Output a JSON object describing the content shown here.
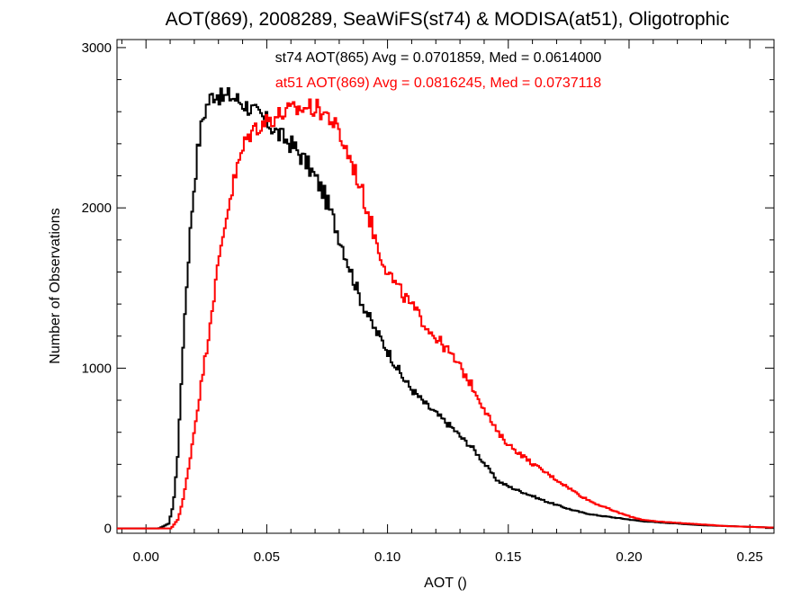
{
  "chart_data": {
    "type": "line",
    "title": "AOT(869), 2008289, SeaWiFS(st74) & MODISA(at51), Oligotrophic",
    "xlabel": "AOT ()",
    "ylabel": "Number of Observations",
    "xlim": [
      -0.012,
      0.26
    ],
    "ylim": [
      -30,
      3050
    ],
    "x_ticks": [
      0.0,
      0.05,
      0.1,
      0.15,
      0.2,
      0.25
    ],
    "x_tick_labels": [
      "0.00",
      "0.05",
      "0.10",
      "0.15",
      "0.20",
      "0.25"
    ],
    "y_ticks": [
      0,
      1000,
      2000,
      3000
    ],
    "y_tick_labels": [
      "0",
      "1000",
      "2000",
      "3000"
    ],
    "grid": false,
    "legend_position": "top-center",
    "series": [
      {
        "name": "st74 AOT(865) Avg = 0.0701859, Med = 0.0614000",
        "color": "#000000",
        "x": [
          -0.012,
          0.005,
          0.009,
          0.011,
          0.013,
          0.015,
          0.017,
          0.019,
          0.021,
          0.023,
          0.025,
          0.027,
          0.029,
          0.031,
          0.034,
          0.037,
          0.04,
          0.043,
          0.046,
          0.049,
          0.052,
          0.055,
          0.058,
          0.061,
          0.064,
          0.067,
          0.07,
          0.073,
          0.076,
          0.079,
          0.082,
          0.085,
          0.088,
          0.091,
          0.094,
          0.097,
          0.1,
          0.103,
          0.106,
          0.109,
          0.112,
          0.115,
          0.118,
          0.121,
          0.124,
          0.127,
          0.13,
          0.135,
          0.14,
          0.145,
          0.15,
          0.155,
          0.16,
          0.165,
          0.17,
          0.175,
          0.18,
          0.185,
          0.19,
          0.195,
          0.2,
          0.205,
          0.21,
          0.22,
          0.23,
          0.24,
          0.25,
          0.26
        ],
        "y": [
          0,
          0,
          30,
          150,
          500,
          1150,
          1650,
          2050,
          2350,
          2550,
          2650,
          2700,
          2720,
          2680,
          2700,
          2680,
          2650,
          2620,
          2580,
          2550,
          2500,
          2450,
          2420,
          2380,
          2320,
          2260,
          2180,
          2100,
          1980,
          1850,
          1720,
          1580,
          1450,
          1350,
          1250,
          1180,
          1100,
          1020,
          940,
          880,
          830,
          780,
          740,
          700,
          660,
          620,
          570,
          500,
          400,
          300,
          260,
          230,
          200,
          170,
          145,
          120,
          100,
          85,
          75,
          65,
          55,
          45,
          40,
          30,
          20,
          15,
          10,
          5
        ]
      },
      {
        "name": "at51 AOT(869) Avg = 0.0816245, Med = 0.0737118",
        "color": "#ff0000",
        "x": [
          -0.012,
          0.01,
          0.013,
          0.015,
          0.017,
          0.019,
          0.021,
          0.023,
          0.025,
          0.027,
          0.029,
          0.031,
          0.033,
          0.035,
          0.037,
          0.039,
          0.041,
          0.043,
          0.045,
          0.047,
          0.049,
          0.052,
          0.055,
          0.058,
          0.061,
          0.064,
          0.067,
          0.07,
          0.073,
          0.076,
          0.079,
          0.082,
          0.085,
          0.088,
          0.091,
          0.094,
          0.097,
          0.1,
          0.103,
          0.106,
          0.109,
          0.112,
          0.115,
          0.118,
          0.121,
          0.124,
          0.127,
          0.13,
          0.135,
          0.14,
          0.145,
          0.15,
          0.155,
          0.16,
          0.165,
          0.17,
          0.175,
          0.18,
          0.185,
          0.19,
          0.195,
          0.2,
          0.205,
          0.21,
          0.22,
          0.23,
          0.24,
          0.25,
          0.26
        ],
        "y": [
          0,
          0,
          60,
          180,
          350,
          550,
          750,
          950,
          1150,
          1380,
          1580,
          1780,
          1960,
          2100,
          2220,
          2330,
          2420,
          2470,
          2500,
          2520,
          2540,
          2560,
          2580,
          2600,
          2610,
          2620,
          2630,
          2620,
          2600,
          2560,
          2480,
          2380,
          2280,
          2150,
          2000,
          1840,
          1700,
          1600,
          1520,
          1460,
          1400,
          1340,
          1280,
          1220,
          1170,
          1120,
          1060,
          1000,
          880,
          740,
          600,
          520,
          460,
          400,
          350,
          300,
          250,
          200,
          160,
          130,
          100,
          75,
          55,
          45,
          35,
          25,
          15,
          10,
          5
        ]
      }
    ]
  }
}
